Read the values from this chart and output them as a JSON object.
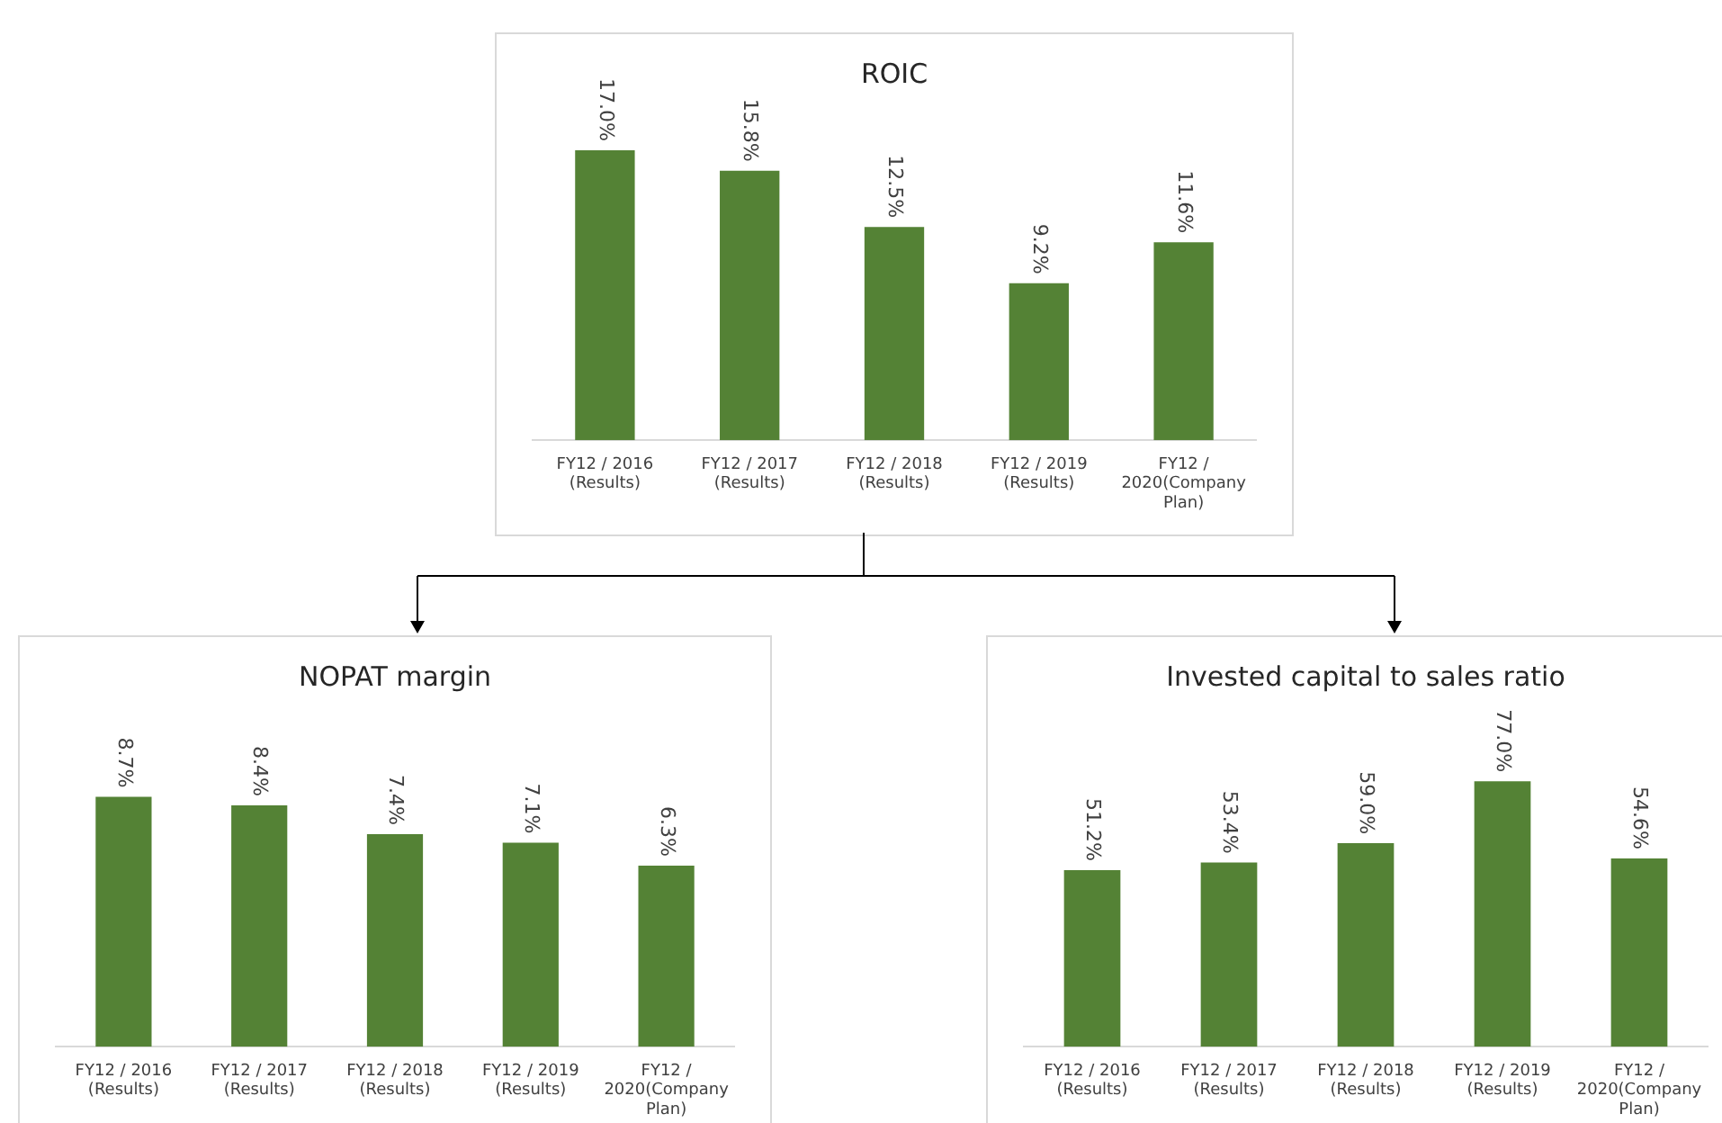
{
  "chart_data": [
    {
      "type": "bar",
      "title": "ROIC",
      "categories": [
        "FY12 / 2016 (Results)",
        "FY12 / 2017 (Results)",
        "FY12 / 2018 (Results)",
        "FY12 / 2019 (Results)",
        "FY12 / 2020(Company Plan)"
      ],
      "values": [
        17.0,
        15.8,
        12.5,
        9.2,
        11.6
      ],
      "value_labels": [
        "17.0%",
        "15.8%",
        "12.5%",
        "9.2%",
        "11.6%"
      ],
      "color": "#548235",
      "grid": false,
      "legend": false,
      "tick_labels": "x"
    },
    {
      "type": "bar",
      "title": "NOPAT margin",
      "categories": [
        "FY12 / 2016 (Results)",
        "FY12 / 2017 (Results)",
        "FY12 / 2018 (Results)",
        "FY12 / 2019 (Results)",
        "FY12 / 2020(Company Plan)"
      ],
      "values": [
        8.7,
        8.4,
        7.4,
        7.1,
        6.3
      ],
      "value_labels": [
        "8.7%",
        "8.4%",
        "7.4%",
        "7.1%",
        "6.3%"
      ],
      "color": "#548235",
      "grid": false,
      "legend": false,
      "tick_labels": "x"
    },
    {
      "type": "bar",
      "title": "Invested capital to sales ratio",
      "categories": [
        "FY12 / 2016 (Results)",
        "FY12 / 2017 (Results)",
        "FY12 / 2018 (Results)",
        "FY12 / 2019 (Results)",
        "FY12 / 2020(Company Plan)"
      ],
      "values": [
        51.2,
        53.4,
        59.0,
        77.0,
        54.6
      ],
      "value_labels": [
        "51.2%",
        "53.4%",
        "59.0%",
        "77.0%",
        "54.6%"
      ],
      "color": "#548235",
      "grid": false,
      "legend": false,
      "tick_labels": "x"
    }
  ]
}
